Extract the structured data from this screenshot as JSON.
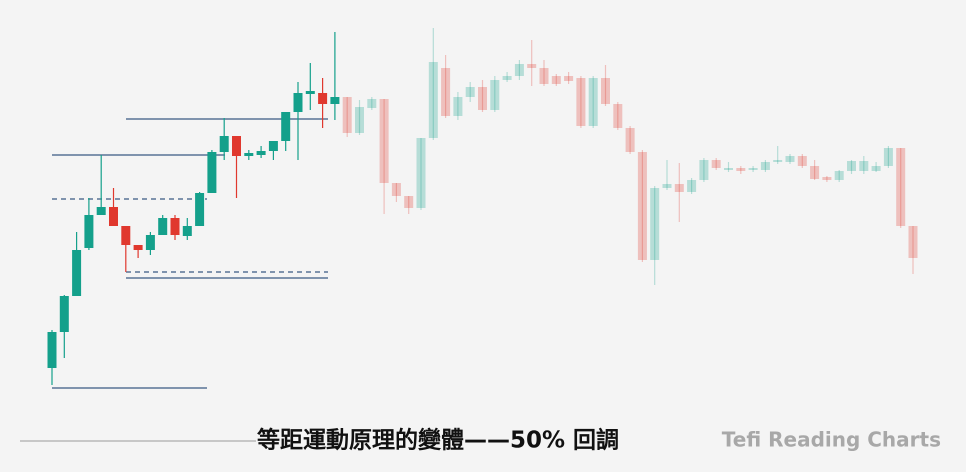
{
  "chart_data": {
    "type": "candlestick",
    "title": "等距運動原理的變體——50% 回調",
    "watermark": "Tefi Reading Charts",
    "ylim": [
      0,
      472
    ],
    "up_color": "#14a08b",
    "down_color": "#e0382e",
    "level_color": "#7f93ad",
    "open": [
      104,
      140,
      176,
      224,
      257,
      265,
      246,
      227,
      222,
      237,
      254,
      236,
      246,
      279,
      320,
      336,
      316,
      317,
      321,
      331,
      360,
      378,
      379,
      368,
      375,
      339,
      364,
      373,
      289,
      276,
      264,
      334,
      404,
      356,
      375,
      385,
      362,
      392,
      396,
      408,
      404,
      396,
      396,
      394,
      346,
      394,
      368,
      344,
      320,
      212,
      284,
      288,
      280,
      292,
      312,
      302,
      304,
      302,
      302,
      310,
      310,
      316,
      306,
      295,
      292,
      301,
      301,
      301,
      306,
      324,
      246
    ],
    "high": [
      142,
      177,
      240,
      274,
      317,
      284,
      246,
      227,
      240,
      257,
      257,
      254,
      280,
      322,
      354,
      336,
      322,
      326,
      331,
      360,
      390,
      409,
      394,
      440,
      375,
      372,
      375,
      373,
      289,
      276,
      334,
      444,
      417,
      380,
      390,
      392,
      396,
      400,
      412,
      432,
      412,
      398,
      400,
      396,
      396,
      407,
      370,
      346,
      322,
      286,
      312,
      309,
      294,
      314,
      314,
      310,
      306,
      306,
      312,
      326,
      318,
      318,
      312,
      296,
      302,
      312,
      316,
      310,
      326,
      324,
      246
    ],
    "low": [
      87,
      114,
      176,
      222,
      257,
      246,
      200,
      214,
      217,
      237,
      232,
      232,
      246,
      279,
      312,
      274,
      312,
      314,
      312,
      321,
      312,
      362,
      344,
      352,
      335,
      337,
      362,
      258,
      270,
      258,
      262,
      332,
      354,
      352,
      370,
      360,
      360,
      390,
      392,
      386,
      386,
      386,
      388,
      344,
      344,
      366,
      342,
      318,
      210,
      187,
      282,
      250,
      278,
      290,
      302,
      300,
      298,
      300,
      300,
      308,
      308,
      304,
      292,
      290,
      290,
      298,
      298,
      300,
      304,
      244,
      198
    ],
    "close": [
      140,
      176,
      222,
      257,
      265,
      246,
      227,
      222,
      237,
      254,
      237,
      246,
      279,
      320,
      336,
      316,
      319,
      321,
      331,
      360,
      379,
      381,
      368,
      375,
      339,
      365,
      373,
      289,
      276,
      264,
      334,
      410,
      356,
      375,
      385,
      362,
      392,
      396,
      408,
      404,
      388,
      388,
      391,
      346,
      394,
      368,
      344,
      320,
      212,
      284,
      288,
      280,
      292,
      312,
      304,
      304,
      301,
      304,
      310,
      312,
      316,
      306,
      293,
      292,
      301,
      311,
      311,
      306,
      324,
      246,
      214
    ],
    "levels": [
      317,
      353,
      194,
      84
    ],
    "dashed_levels": [
      200,
      273
    ]
  }
}
